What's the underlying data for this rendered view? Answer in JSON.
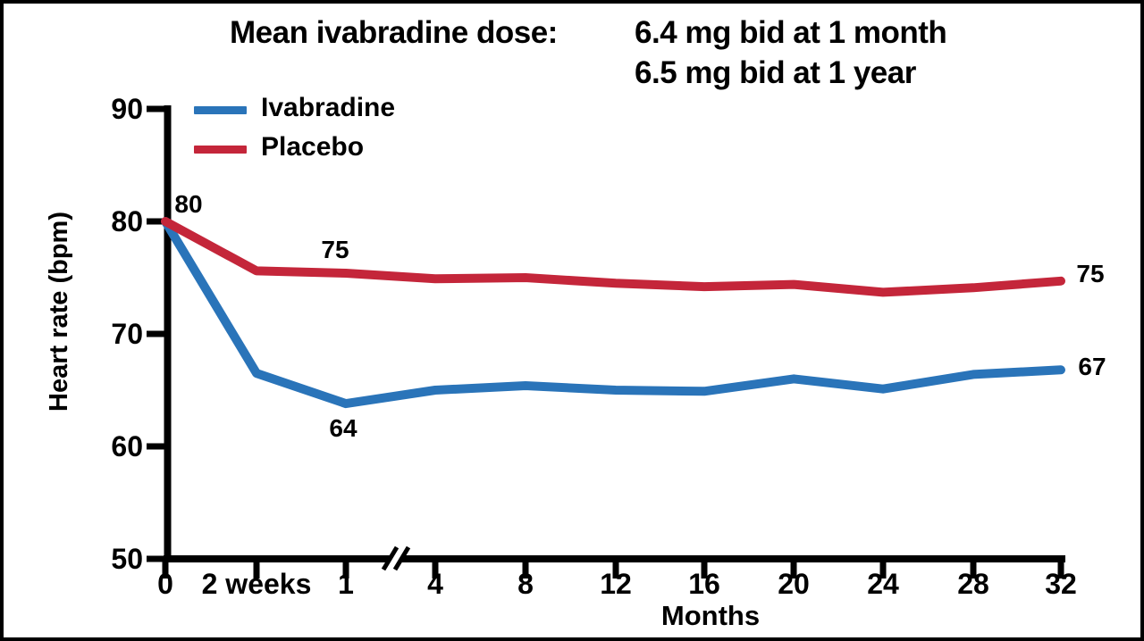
{
  "title": {
    "label": "Mean ivabradine dose:",
    "dose_line1": "6.4 mg bid at 1 month",
    "dose_line2": "6.5 mg bid at 1 year"
  },
  "legend": {
    "items": [
      {
        "label": "Ivabradine",
        "color": "#2A74B9"
      },
      {
        "label": "Placebo",
        "color": "#C4263A"
      }
    ]
  },
  "chart_data": {
    "type": "line",
    "title": "Mean ivabradine dose: 6.4 mg bid at 1 month / 6.5 mg bid at 1 year",
    "xlabel": "Months",
    "ylabel": "Heart rate (bpm)",
    "ylim": [
      50,
      90
    ],
    "y_ticks": [
      90,
      80,
      70,
      60,
      50
    ],
    "x_tick_labels": [
      "0",
      "2 weeks",
      "1",
      "4",
      "8",
      "12",
      "16",
      "20",
      "24",
      "28",
      "32"
    ],
    "x_months": [
      0,
      0.5,
      1,
      4,
      8,
      12,
      16,
      20,
      24,
      28,
      32
    ],
    "axis_break_between": [
      "1",
      "4"
    ],
    "grid": false,
    "legend_position": "top-left",
    "series": [
      {
        "name": "Ivabradine",
        "color": "#2A74B9",
        "values": [
          80,
          66.5,
          63.8,
          65.0,
          65.4,
          65.0,
          64.9,
          66.0,
          65.1,
          66.4,
          66.8
        ]
      },
      {
        "name": "Placebo",
        "color": "#C4263A",
        "values": [
          80,
          75.6,
          75.4,
          74.9,
          75.0,
          74.5,
          74.2,
          74.4,
          73.7,
          74.1,
          74.7
        ]
      }
    ],
    "point_labels": [
      {
        "text": "80",
        "series": "both",
        "month": 0,
        "value": 80
      },
      {
        "text": "75",
        "series": "Placebo",
        "month": 1,
        "value": 75
      },
      {
        "text": "64",
        "series": "Ivabradine",
        "month": 1,
        "value": 64
      },
      {
        "text": "75",
        "series": "Placebo",
        "month": 32,
        "value": 75
      },
      {
        "text": "67",
        "series": "Ivabradine",
        "month": 32,
        "value": 67
      }
    ]
  }
}
